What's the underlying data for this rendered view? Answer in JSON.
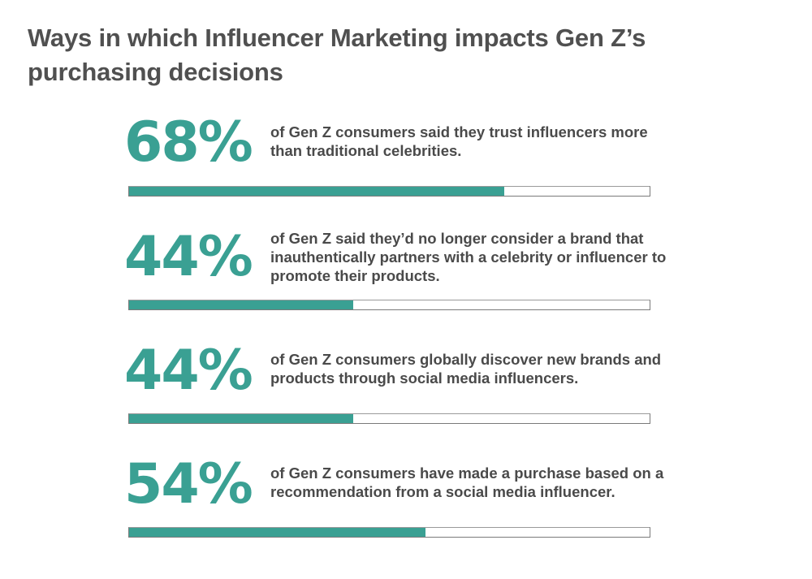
{
  "title": "Ways in which Influencer Marketing impacts Gen Z’s purchasing decisions",
  "colors": {
    "accent": "#3aa093",
    "text": "#4a4a4a",
    "title": "#505050",
    "bar_border": "#7a7a7a"
  },
  "stats": [
    {
      "value": "68%",
      "text": "of Gen Z consumers said they trust influencers more than traditional celebrities.",
      "fill_pct": 72
    },
    {
      "value": "44%",
      "text": "of Gen Z said they’d no longer consider a brand that inauthentically partners with a celebrity or influencer to promote their products.",
      "fill_pct": 43
    },
    {
      "value": "44%",
      "text": "of Gen Z consumers globally discover new brands and products through social media influencers.",
      "fill_pct": 43
    },
    {
      "value": "54%",
      "text": "of Gen Z consumers have made a purchase based on a recommendation from a social media influencer.",
      "fill_pct": 57
    }
  ],
  "chart_data": {
    "type": "bar",
    "title": "Ways in which Influencer Marketing impacts Gen Z’s purchasing decisions",
    "orientation": "horizontal",
    "categories": [
      "of Gen Z consumers said they trust influencers more than traditional celebrities.",
      "of Gen Z said they’d no longer consider a brand that inauthentically partners with a celebrity or influencer to promote their products.",
      "of Gen Z consumers globally discover new brands and products through social media influencers.",
      "of Gen Z consumers have made a purchase based on a recommendation from a social media influencer."
    ],
    "values": [
      68,
      44,
      44,
      54
    ],
    "value_labels": [
      "68%",
      "44%",
      "44%",
      "54%"
    ],
    "unit": "%",
    "xlim": [
      0,
      100
    ],
    "xlabel": "",
    "ylabel": "",
    "grid": false,
    "legend": null
  }
}
